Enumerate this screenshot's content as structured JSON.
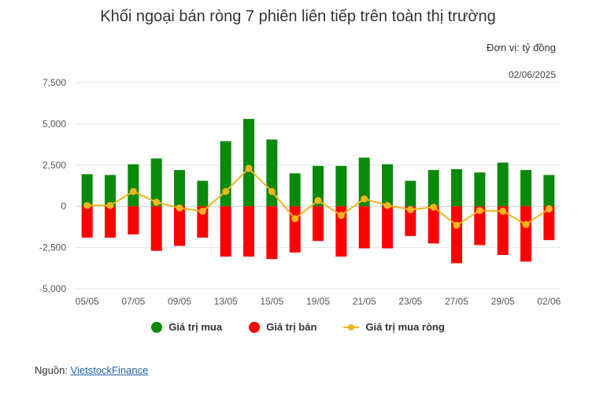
{
  "header": {
    "title": "Khối ngoại bán ròng 7 phiên liên tiếp trên toàn thị trường",
    "unit": "Đơn vị: tỷ đồng",
    "date": "02/06/2025"
  },
  "source": {
    "label": "Nguồn: ",
    "link_text": "VietstockFinance"
  },
  "colors": {
    "buy": "#0a8a0a",
    "sell": "#ff0000",
    "net": "#f2b51d",
    "grid": "#e6e6e6"
  },
  "chart_data": {
    "type": "bar",
    "title": "Khối ngoại bán ròng 7 phiên liên tiếp trên toàn thị trường",
    "xlabel": "",
    "ylabel": "",
    "ylim": [
      -5000,
      7500
    ],
    "yticks": [
      7500,
      5000,
      2500,
      0,
      -2500,
      -5000
    ],
    "ytick_labels": [
      "7,500",
      "5,000",
      "2,500",
      "0",
      "-2,500",
      "-5,000"
    ],
    "grid": true,
    "legend_position": "bottom",
    "categories": [
      "05/05",
      "06/05",
      "07/05",
      "08/05",
      "09/05",
      "12/05",
      "13/05",
      "14/05",
      "15/05",
      "16/05",
      "19/05",
      "20/05",
      "21/05",
      "22/05",
      "23/05",
      "26/05",
      "27/05",
      "28/05",
      "29/05",
      "30/05",
      "02/06"
    ],
    "xtick_labels": [
      "05/05",
      "07/05",
      "09/05",
      "13/05",
      "15/05",
      "19/05",
      "21/05",
      "23/05",
      "27/05",
      "29/05",
      "02/06"
    ],
    "series": [
      {
        "name": "Giá trị mua",
        "type": "bar",
        "values": [
          1950,
          1900,
          2550,
          2900,
          2200,
          1550,
          3950,
          5300,
          4050,
          2000,
          2450,
          2450,
          2950,
          2550,
          1550,
          2200,
          2250,
          2050,
          2650,
          2200,
          1900
        ]
      },
      {
        "name": "Giá trị bán",
        "type": "bar",
        "values": [
          -1900,
          -1900,
          -1700,
          -2700,
          -2400,
          -1900,
          -3050,
          -3050,
          -3200,
          -2800,
          -2100,
          -3050,
          -2550,
          -2550,
          -1800,
          -2250,
          -3450,
          -2350,
          -2950,
          -3350,
          -2050
        ]
      },
      {
        "name": "Giá trị mua ròng",
        "type": "line",
        "values": [
          50,
          50,
          900,
          250,
          -100,
          -300,
          900,
          2300,
          900,
          -750,
          350,
          -550,
          450,
          50,
          -200,
          -50,
          -1150,
          -250,
          -300,
          -1100,
          -150
        ]
      }
    ]
  }
}
